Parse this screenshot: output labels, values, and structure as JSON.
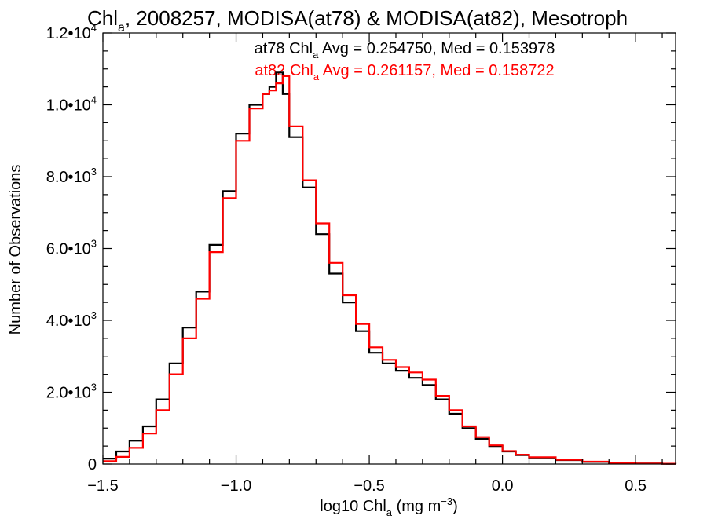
{
  "chart_data": {
    "type": "line",
    "step": true,
    "title": {
      "prefix": "Chl",
      "sub": "a",
      "rest": ", 2008257, MODISA(at78) & MODISA(at82), Mesotroph"
    },
    "xlabel": {
      "prefix": "log10 Chl",
      "sub": "a",
      "rest": " (mg m",
      "sup": "−3",
      "end": ")"
    },
    "ylabel": "Number of Observations",
    "xlim": [
      -1.5,
      0.65
    ],
    "ylim": [
      0,
      12000
    ],
    "xticks": [
      {
        "value": -1.5,
        "label": "−1.5"
      },
      {
        "value": -1.0,
        "label": "−1.0"
      },
      {
        "value": -0.5,
        "label": "−0.5"
      },
      {
        "value": 0.0,
        "label": "0.0"
      },
      {
        "value": 0.5,
        "label": "0.5"
      }
    ],
    "yticks": [
      {
        "value": 0,
        "mant": "0",
        "exp": ""
      },
      {
        "value": 2000,
        "mant": "2.0•10",
        "exp": "3"
      },
      {
        "value": 4000,
        "mant": "4.0•10",
        "exp": "3"
      },
      {
        "value": 6000,
        "mant": "6.0•10",
        "exp": "3"
      },
      {
        "value": 8000,
        "mant": "8.0•10",
        "exp": "3"
      },
      {
        "value": 10000,
        "mant": "1.0•10",
        "exp": "4"
      },
      {
        "value": 12000,
        "mant": "1.2•10",
        "exp": "4"
      }
    ],
    "annotations": [
      {
        "color": "#000000",
        "prefix": "at78 Chl",
        "sub": "a",
        "rest": " Avg = 0.254750, Med = 0.153978"
      },
      {
        "color": "#ff0000",
        "prefix": "at82 Chl",
        "sub": "a",
        "rest": " Avg = 0.261157, Med = 0.158722"
      }
    ],
    "series": [
      {
        "color": "#000000",
        "x": [
          -1.5,
          -1.45,
          -1.4,
          -1.35,
          -1.3,
          -1.25,
          -1.2,
          -1.15,
          -1.1,
          -1.05,
          -1.0,
          -0.95,
          -0.9,
          -0.875,
          -0.85,
          -0.825,
          -0.8,
          -0.75,
          -0.7,
          -0.65,
          -0.6,
          -0.55,
          -0.5,
          -0.45,
          -0.4,
          -0.35,
          -0.3,
          -0.25,
          -0.2,
          -0.15,
          -0.1,
          -0.05,
          0.0,
          0.05,
          0.1,
          0.2,
          0.3,
          0.4,
          0.5,
          0.6,
          0.65
        ],
        "y": [
          150,
          350,
          650,
          1050,
          1800,
          2800,
          3800,
          4800,
          6100,
          7600,
          9200,
          10000,
          10300,
          10500,
          10900,
          10300,
          9100,
          7700,
          6400,
          5300,
          4500,
          3700,
          3100,
          2800,
          2600,
          2400,
          2200,
          1800,
          1400,
          1000,
          700,
          500,
          350,
          250,
          180,
          110,
          60,
          30,
          15,
          8,
          5
        ]
      },
      {
        "color": "#ff0000",
        "x": [
          -1.5,
          -1.45,
          -1.4,
          -1.35,
          -1.3,
          -1.25,
          -1.2,
          -1.15,
          -1.1,
          -1.05,
          -1.0,
          -0.95,
          -0.9,
          -0.875,
          -0.85,
          -0.825,
          -0.8,
          -0.75,
          -0.7,
          -0.65,
          -0.6,
          -0.55,
          -0.5,
          -0.45,
          -0.4,
          -0.35,
          -0.3,
          -0.25,
          -0.2,
          -0.15,
          -0.1,
          -0.05,
          0.0,
          0.05,
          0.1,
          0.2,
          0.3,
          0.4,
          0.5,
          0.6,
          0.65
        ],
        "y": [
          80,
          200,
          450,
          850,
          1500,
          2500,
          3500,
          4600,
          5900,
          7400,
          9000,
          9900,
          10300,
          10400,
          10600,
          10800,
          9400,
          7900,
          6700,
          5600,
          4700,
          3900,
          3250,
          2900,
          2700,
          2550,
          2350,
          1900,
          1500,
          1050,
          750,
          520,
          360,
          260,
          190,
          115,
          65,
          32,
          16,
          8,
          5
        ]
      }
    ]
  }
}
